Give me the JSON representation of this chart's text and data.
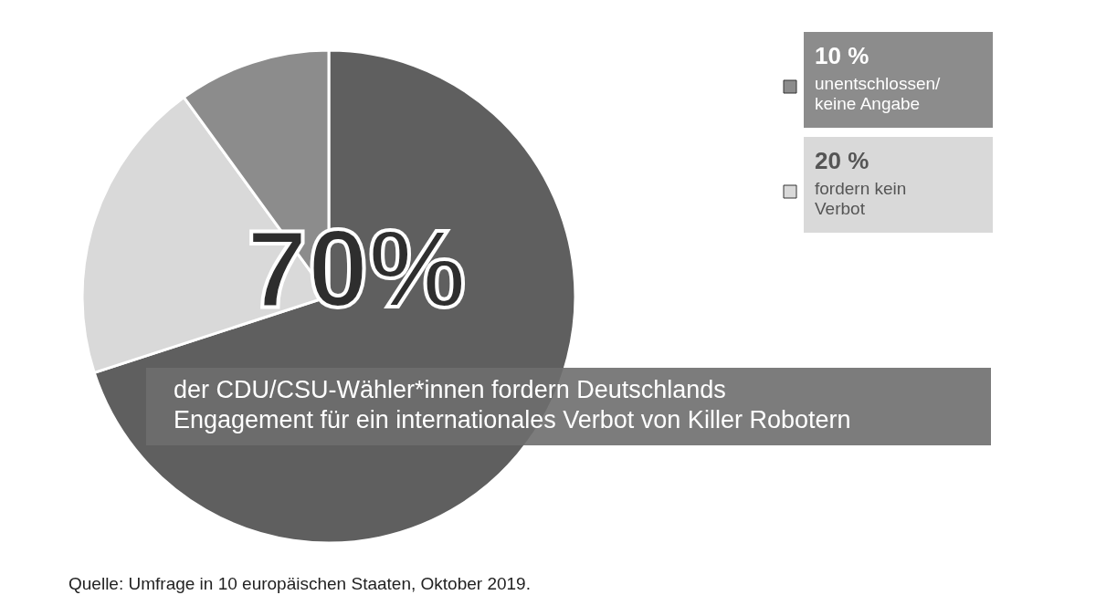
{
  "chart_data": {
    "type": "pie",
    "categories": [
      "der CDU/CSU-Wähler*innen fordern Deutschlands\nEngagement für ein internationales Verbot von Killer Robotern",
      "fordern kein\nVerbot",
      "unentschlossen/\nkeine Angabe"
    ],
    "values": [
      70,
      20,
      10
    ],
    "colors": [
      "#5f5f5f",
      "#d9d9d9",
      "#8c8c8c"
    ],
    "value_labels": [
      "70%",
      "20 %",
      "10 %"
    ],
    "legend": "top right",
    "annotations": [
      "Quelle: Umfrage in 10 europäischen Staaten, Oktober 2019."
    ]
  }
}
